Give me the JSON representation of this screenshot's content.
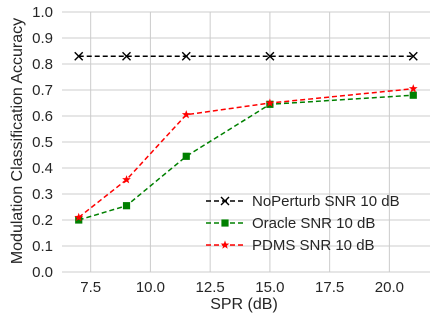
{
  "chart_data": {
    "type": "line",
    "xlabel": "SPR (dB)",
    "ylabel": "Modulation Classification Accuracy",
    "xlim": [
      6.3,
      21.7
    ],
    "ylim": [
      0.0,
      1.0
    ],
    "xticks": [
      7.5,
      10.0,
      12.5,
      15.0,
      17.5,
      20.0
    ],
    "xtick_labels": [
      "7.5",
      "10.0",
      "12.5",
      "15.0",
      "17.5",
      "20.0"
    ],
    "yticks": [
      0.0,
      0.1,
      0.2,
      0.3,
      0.4,
      0.5,
      0.6,
      0.7,
      0.8,
      0.9,
      1.0
    ],
    "ytick_labels": [
      "0.0",
      "0.1",
      "0.2",
      "0.3",
      "0.4",
      "0.5",
      "0.6",
      "0.7",
      "0.8",
      "0.9",
      "1.0"
    ],
    "grid": true,
    "legend_position": "lower-right",
    "x": [
      7,
      9,
      11.5,
      15,
      21
    ],
    "series": [
      {
        "name": "NoPerturb SNR 10 dB",
        "values": [
          0.83,
          0.83,
          0.83,
          0.83,
          0.83
        ],
        "color": "#000000",
        "marker": "x"
      },
      {
        "name": "Oracle SNR 10 dB",
        "values": [
          0.2,
          0.255,
          0.445,
          0.645,
          0.68
        ],
        "color": "#008000",
        "marker": "square"
      },
      {
        "name": "PDMS  SNR 10 dB",
        "values": [
          0.21,
          0.355,
          0.605,
          0.65,
          0.705
        ],
        "color": "#ff0000",
        "marker": "star"
      }
    ]
  }
}
